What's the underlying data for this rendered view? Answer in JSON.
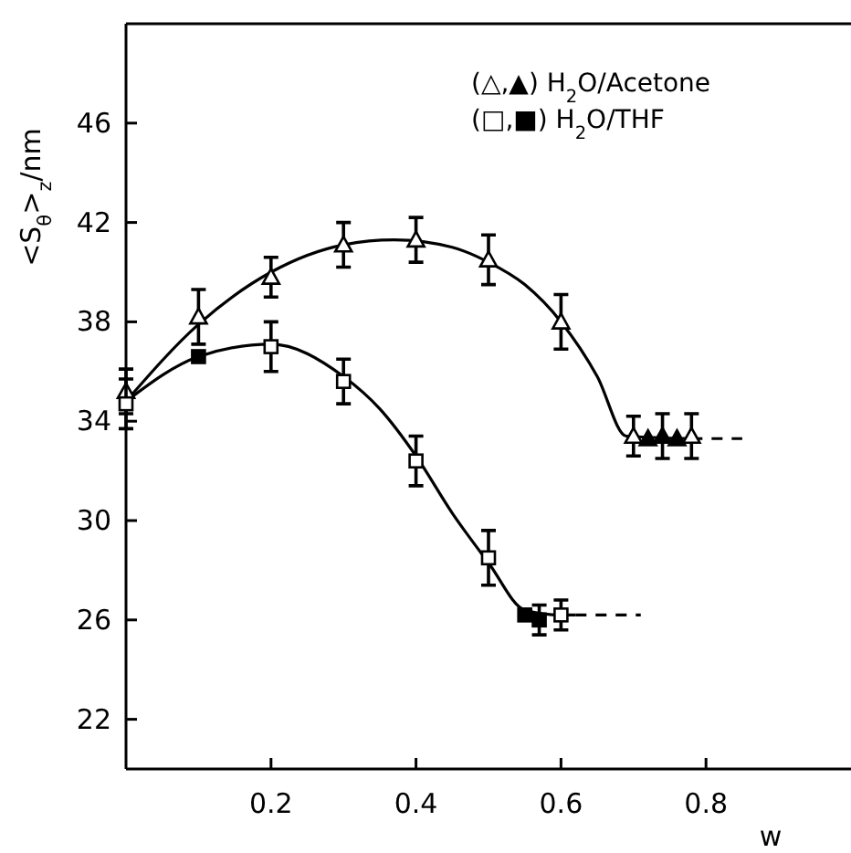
{
  "chart_data": {
    "type": "scatter",
    "ylabel": "<S$_{θ}$>$_{z}$/nm",
    "xlabel": "w",
    "xlim": [
      0,
      1
    ],
    "ylim": [
      20,
      50
    ],
    "xticks": [
      0.2,
      0.4,
      0.6,
      0.8
    ],
    "yticks": [
      22,
      26,
      30,
      34,
      38,
      42,
      46
    ],
    "grid": false,
    "annotations": [
      "(△,▲) H$_{2}$O/Acetone",
      "(□,■) H$_{2}$O/THF"
    ],
    "series": [
      {
        "type": "line",
        "color": "#000000",
        "line_style": "solid",
        "marker": "none",
        "x": [
          0,
          0.1,
          0.2,
          0.3,
          0.37,
          0.45,
          0.5,
          0.55,
          0.6,
          0.65,
          0.69,
          0.78
        ],
        "values": [
          34.8,
          37.9,
          40.0,
          41.1,
          41.3,
          41.0,
          40.4,
          39.5,
          38.0,
          35.8,
          33.4,
          33.3
        ]
      },
      {
        "type": "line",
        "color": "#000000",
        "line_style": "dashed",
        "marker": "none",
        "x": [
          0.78,
          0.85
        ],
        "values": [
          33.3,
          33.3
        ]
      },
      {
        "type": "line",
        "color": "#000000",
        "line_style": "solid",
        "marker": "none",
        "x": [
          0,
          0.1,
          0.2,
          0.3,
          0.35,
          0.4,
          0.45,
          0.5,
          0.55,
          0.6,
          0.62
        ],
        "values": [
          34.8,
          36.6,
          37.1,
          35.8,
          34.5,
          32.6,
          30.3,
          28.3,
          26.4,
          26.2,
          26.2
        ]
      },
      {
        "type": "line",
        "color": "#000000",
        "line_style": "dashed",
        "marker": "none",
        "x": [
          0.62,
          0.71
        ],
        "values": [
          26.2,
          26.2
        ]
      },
      {
        "color": "#ffffff",
        "marker": "triangle",
        "x": [
          0,
          0.1,
          0.2,
          0.3,
          0.4,
          0.5,
          0.6,
          0.7,
          0.78
        ],
        "values": [
          35.2,
          38.2,
          39.8,
          41.1,
          41.3,
          40.5,
          38.0,
          33.4,
          33.4
        ],
        "errors": [
          0.9,
          1.1,
          0.8,
          0.9,
          0.9,
          1.0,
          1.1,
          0.8,
          0.9
        ]
      },
      {
        "color": "#000000",
        "marker": "triangle",
        "x": [
          0.72,
          0.74,
          0.76
        ],
        "values": [
          33.3,
          33.4,
          33.3
        ],
        "errors": [
          null,
          0.9,
          null
        ]
      },
      {
        "color": "#ffffff",
        "marker": "square",
        "x": [
          0,
          0.2,
          0.3,
          0.4,
          0.5,
          0.6
        ],
        "values": [
          34.7,
          37.0,
          35.6,
          32.4,
          28.5,
          26.2
        ],
        "errors": [
          1.0,
          1.0,
          0.9,
          1.0,
          1.1,
          0.6
        ]
      },
      {
        "color": "#000000",
        "marker": "square",
        "x": [
          0.1,
          0.55,
          0.57
        ],
        "values": [
          36.6,
          26.2,
          26.0
        ],
        "errors": [
          null,
          null,
          0.6
        ]
      }
    ]
  }
}
